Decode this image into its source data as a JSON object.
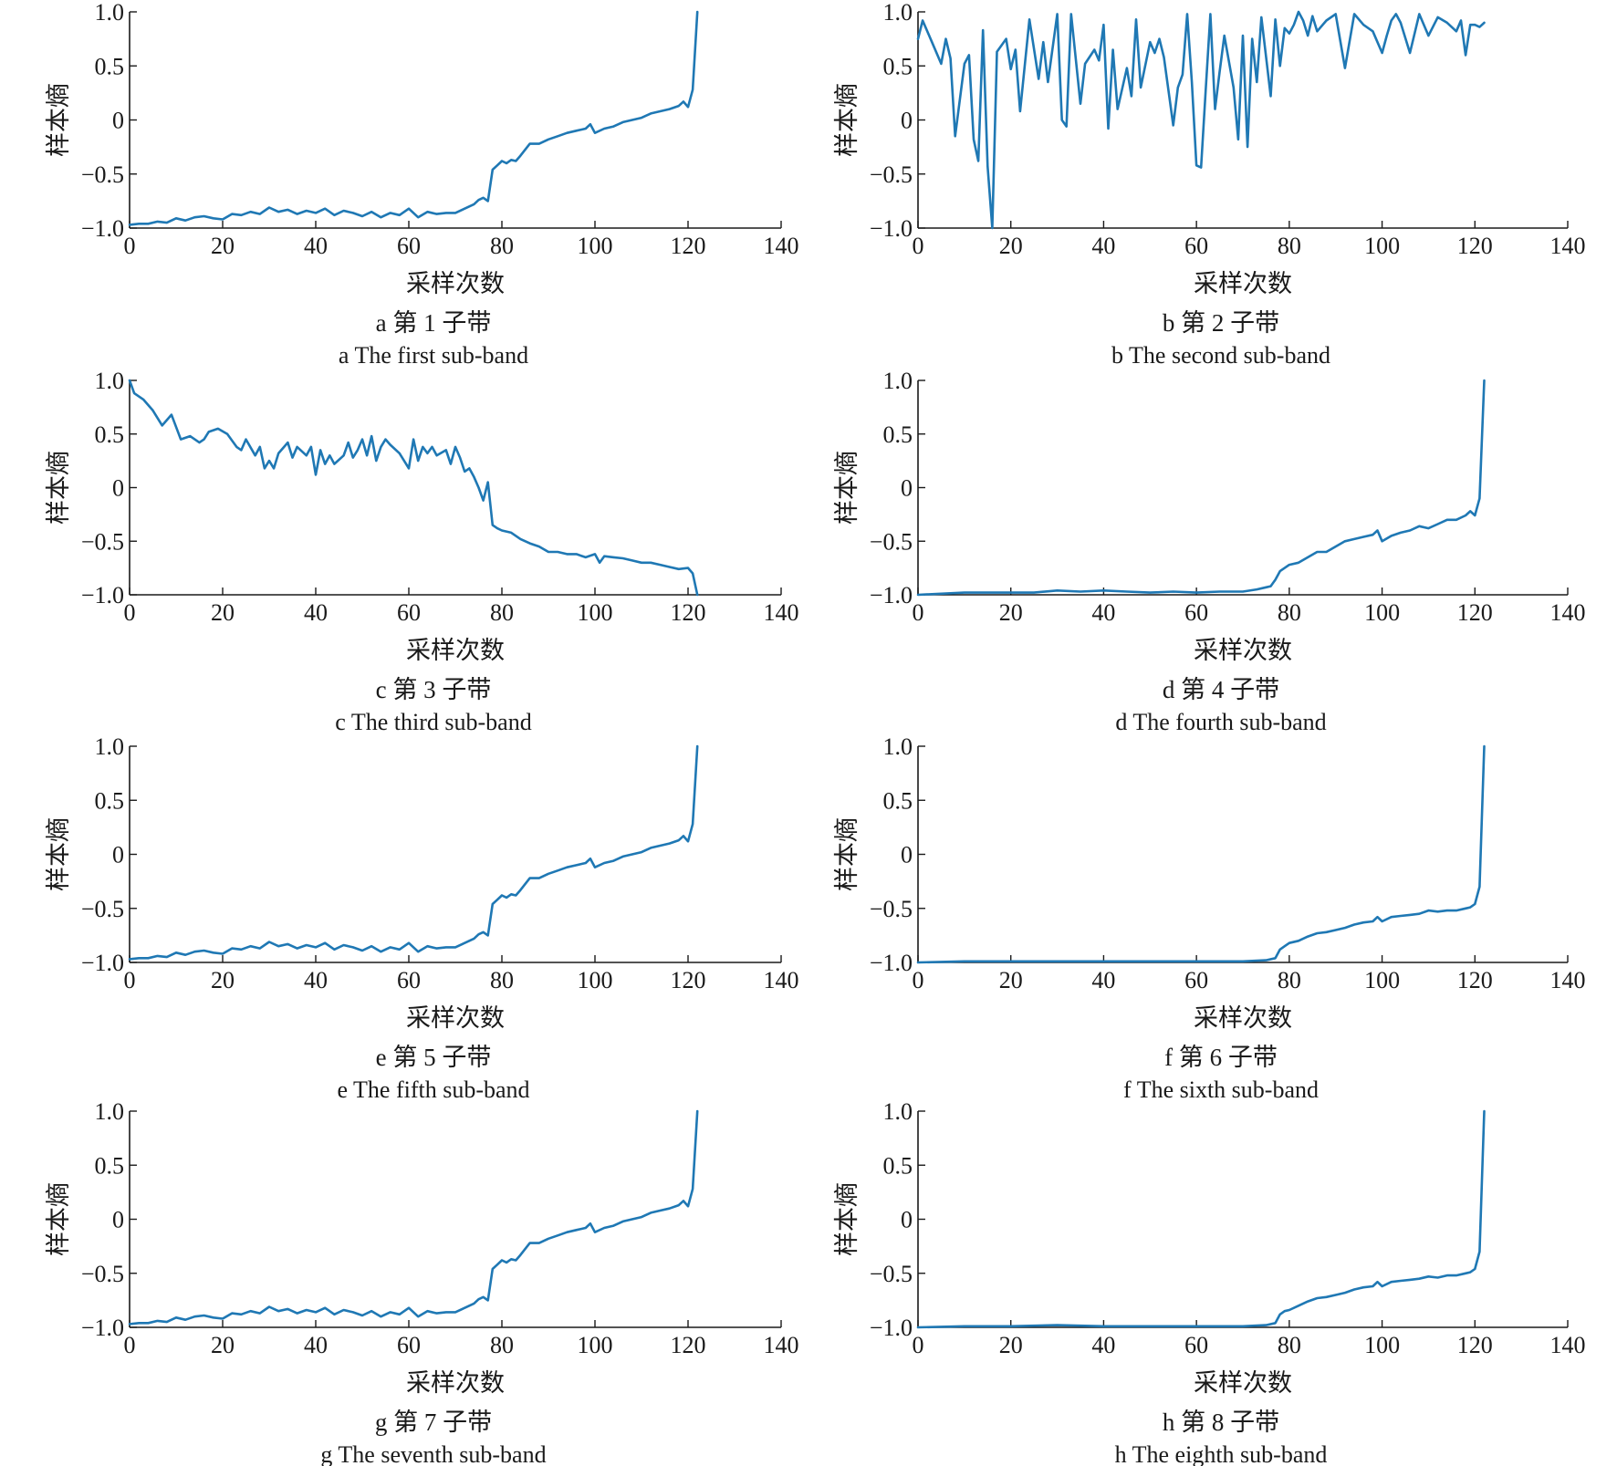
{
  "figure": {
    "line_color": "#1f78b4",
    "xlabel": "采样次数",
    "ylabel": "样本熵",
    "xticks": [
      "0",
      "20",
      "40",
      "60",
      "80",
      "100",
      "120",
      "140"
    ],
    "yticks": [
      "1.0",
      "0.5",
      "0",
      "−0.5",
      "−1.0"
    ]
  },
  "chart_data": [
    {
      "type": "line",
      "panel": "a",
      "caption_cn": "a  第 1 子带",
      "caption_en": "a  The first sub-band",
      "xlabel": "采样次数",
      "ylabel": "样本熵",
      "xlim": [
        0,
        140
      ],
      "ylim": [
        -1.0,
        1.0
      ],
      "x": [
        0,
        2,
        4,
        6,
        8,
        10,
        12,
        14,
        16,
        18,
        20,
        22,
        24,
        26,
        28,
        30,
        32,
        34,
        36,
        38,
        40,
        42,
        44,
        46,
        48,
        50,
        52,
        54,
        56,
        58,
        60,
        62,
        64,
        66,
        68,
        70,
        72,
        74,
        75,
        76,
        77,
        78,
        79,
        80,
        81,
        82,
        83,
        84,
        86,
        88,
        90,
        92,
        94,
        96,
        98,
        99,
        100,
        102,
        104,
        106,
        108,
        110,
        112,
        114,
        116,
        118,
        119,
        120,
        121,
        122
      ],
      "series": [
        {
          "values": [
            -0.97,
            -0.96,
            -0.96,
            -0.94,
            -0.95,
            -0.91,
            -0.93,
            -0.9,
            -0.89,
            -0.91,
            -0.92,
            -0.87,
            -0.88,
            -0.85,
            -0.87,
            -0.81,
            -0.85,
            -0.83,
            -0.87,
            -0.84,
            -0.86,
            -0.82,
            -0.88,
            -0.84,
            -0.86,
            -0.89,
            -0.85,
            -0.9,
            -0.86,
            -0.88,
            -0.82,
            -0.9,
            -0.85,
            -0.87,
            -0.86,
            -0.86,
            -0.82,
            -0.78,
            -0.74,
            -0.72,
            -0.75,
            -0.46,
            -0.42,
            -0.38,
            -0.4,
            -0.37,
            -0.38,
            -0.33,
            -0.22,
            -0.22,
            -0.18,
            -0.15,
            -0.12,
            -0.1,
            -0.08,
            -0.04,
            -0.12,
            -0.08,
            -0.06,
            -0.02,
            0.0,
            0.02,
            0.06,
            0.08,
            0.1,
            0.13,
            0.17,
            0.12,
            0.28,
            1.0
          ]
        }
      ]
    },
    {
      "type": "line",
      "panel": "b",
      "caption_cn": "b  第 2 子带",
      "caption_en": "b  The second sub-band",
      "xlabel": "采样次数",
      "ylabel": "样本熵",
      "xlim": [
        0,
        140
      ],
      "ylim": [
        -1.0,
        1.0
      ],
      "x": [
        0,
        1,
        3,
        5,
        6,
        7,
        8,
        10,
        11,
        12,
        13,
        14,
        15,
        16,
        17,
        19,
        20,
        21,
        22,
        24,
        26,
        27,
        28,
        30,
        31,
        32,
        33,
        35,
        36,
        38,
        39,
        40,
        41,
        42,
        43,
        45,
        46,
        47,
        48,
        50,
        51,
        52,
        53,
        55,
        56,
        57,
        58,
        59,
        60,
        61,
        62,
        63,
        64,
        65,
        66,
        68,
        69,
        70,
        71,
        72,
        73,
        74,
        76,
        77,
        78,
        79,
        80,
        81,
        82,
        83,
        84,
        85,
        86,
        88,
        90,
        92,
        94,
        96,
        98,
        100,
        101,
        102,
        103,
        104,
        106,
        108,
        110,
        112,
        114,
        116,
        117,
        118,
        119,
        120,
        121,
        122
      ],
      "series": [
        {
          "values": [
            0.75,
            0.92,
            0.72,
            0.52,
            0.75,
            0.57,
            -0.15,
            0.52,
            0.6,
            -0.18,
            -0.38,
            0.83,
            -0.43,
            -1.0,
            0.63,
            0.75,
            0.47,
            0.65,
            0.08,
            0.93,
            0.38,
            0.72,
            0.35,
            0.98,
            0.0,
            -0.06,
            0.98,
            0.15,
            0.52,
            0.65,
            0.55,
            0.88,
            -0.08,
            0.65,
            0.1,
            0.48,
            0.22,
            0.93,
            0.3,
            0.72,
            0.62,
            0.75,
            0.58,
            -0.05,
            0.3,
            0.42,
            0.98,
            0.35,
            -0.42,
            -0.44,
            0.28,
            0.98,
            0.1,
            0.45,
            0.78,
            0.3,
            -0.18,
            0.78,
            -0.25,
            0.75,
            0.35,
            0.95,
            0.22,
            0.93,
            0.5,
            0.85,
            0.8,
            0.88,
            1.0,
            0.92,
            0.78,
            0.96,
            0.82,
            0.92,
            0.98,
            0.48,
            0.98,
            0.88,
            0.82,
            0.62,
            0.78,
            0.92,
            0.98,
            0.9,
            0.62,
            0.98,
            0.78,
            0.95,
            0.9,
            0.82,
            0.92,
            0.6,
            0.88,
            0.88,
            0.86,
            0.9
          ]
        }
      ]
    },
    {
      "type": "line",
      "panel": "c",
      "caption_cn": "c  第 3 子带",
      "caption_en": "c  The third sub-band",
      "xlabel": "采样次数",
      "ylabel": "样本熵",
      "xlim": [
        0,
        140
      ],
      "ylim": [
        -1.0,
        1.0
      ],
      "x": [
        0,
        1,
        3,
        5,
        7,
        9,
        11,
        13,
        15,
        16,
        17,
        19,
        21,
        23,
        24,
        25,
        27,
        28,
        29,
        30,
        31,
        32,
        34,
        35,
        36,
        38,
        39,
        40,
        41,
        42,
        43,
        44,
        46,
        47,
        48,
        49,
        50,
        51,
        52,
        53,
        54,
        55,
        56,
        58,
        60,
        61,
        62,
        63,
        64,
        65,
        66,
        68,
        69,
        70,
        71,
        72,
        73,
        74,
        75,
        76,
        77,
        78,
        79,
        80,
        82,
        84,
        86,
        88,
        90,
        92,
        94,
        96,
        98,
        100,
        101,
        102,
        104,
        106,
        108,
        110,
        112,
        114,
        116,
        118,
        120,
        121,
        122
      ],
      "series": [
        {
          "values": [
            1.0,
            0.88,
            0.82,
            0.72,
            0.58,
            0.68,
            0.45,
            0.48,
            0.42,
            0.45,
            0.52,
            0.55,
            0.5,
            0.38,
            0.35,
            0.45,
            0.3,
            0.38,
            0.18,
            0.25,
            0.18,
            0.32,
            0.42,
            0.28,
            0.38,
            0.3,
            0.38,
            0.12,
            0.35,
            0.22,
            0.3,
            0.22,
            0.3,
            0.42,
            0.28,
            0.35,
            0.45,
            0.3,
            0.48,
            0.25,
            0.38,
            0.45,
            0.4,
            0.32,
            0.18,
            0.45,
            0.25,
            0.38,
            0.32,
            0.38,
            0.3,
            0.35,
            0.22,
            0.38,
            0.28,
            0.15,
            0.18,
            0.1,
            0.0,
            -0.12,
            0.05,
            -0.35,
            -0.38,
            -0.4,
            -0.42,
            -0.48,
            -0.52,
            -0.55,
            -0.6,
            -0.6,
            -0.62,
            -0.62,
            -0.65,
            -0.62,
            -0.7,
            -0.64,
            -0.65,
            -0.66,
            -0.68,
            -0.7,
            -0.7,
            -0.72,
            -0.74,
            -0.76,
            -0.75,
            -0.8,
            -1.0
          ]
        }
      ]
    },
    {
      "type": "line",
      "panel": "d",
      "caption_cn": "d  第 4 子带",
      "caption_en": "d  The fourth sub-band",
      "xlabel": "采样次数",
      "ylabel": "样本熵",
      "xlim": [
        0,
        140
      ],
      "ylim": [
        -1.0,
        1.0
      ],
      "x": [
        0,
        5,
        10,
        15,
        20,
        25,
        30,
        35,
        40,
        45,
        50,
        55,
        60,
        65,
        70,
        73,
        75,
        76,
        77,
        78,
        79,
        80,
        82,
        84,
        86,
        88,
        90,
        92,
        94,
        96,
        98,
        99,
        100,
        102,
        104,
        106,
        108,
        110,
        112,
        114,
        116,
        118,
        119,
        120,
        121,
        122
      ],
      "series": [
        {
          "values": [
            -1.0,
            -0.99,
            -0.98,
            -0.98,
            -0.98,
            -0.98,
            -0.96,
            -0.97,
            -0.96,
            -0.97,
            -0.98,
            -0.97,
            -0.98,
            -0.97,
            -0.97,
            -0.95,
            -0.93,
            -0.92,
            -0.86,
            -0.78,
            -0.75,
            -0.72,
            -0.7,
            -0.65,
            -0.6,
            -0.6,
            -0.55,
            -0.5,
            -0.48,
            -0.46,
            -0.44,
            -0.4,
            -0.5,
            -0.45,
            -0.42,
            -0.4,
            -0.36,
            -0.38,
            -0.34,
            -0.3,
            -0.3,
            -0.26,
            -0.22,
            -0.26,
            -0.1,
            1.0
          ]
        }
      ]
    },
    {
      "type": "line",
      "panel": "e",
      "caption_cn": "e  第 5 子带",
      "caption_en": "e  The fifth sub-band",
      "xlabel": "采样次数",
      "ylabel": "样本熵",
      "xlim": [
        0,
        140
      ],
      "ylim": [
        -1.0,
        1.0
      ],
      "x": [
        0,
        2,
        4,
        6,
        8,
        10,
        12,
        14,
        16,
        18,
        20,
        22,
        24,
        26,
        28,
        30,
        32,
        34,
        36,
        38,
        40,
        42,
        44,
        46,
        48,
        50,
        52,
        54,
        56,
        58,
        60,
        62,
        64,
        66,
        68,
        70,
        72,
        74,
        75,
        76,
        77,
        78,
        79,
        80,
        81,
        82,
        83,
        84,
        86,
        88,
        90,
        92,
        94,
        96,
        98,
        99,
        100,
        102,
        104,
        106,
        108,
        110,
        112,
        114,
        116,
        118,
        119,
        120,
        121,
        122
      ],
      "series": [
        {
          "values": [
            -0.97,
            -0.96,
            -0.96,
            -0.94,
            -0.95,
            -0.91,
            -0.93,
            -0.9,
            -0.89,
            -0.91,
            -0.92,
            -0.87,
            -0.88,
            -0.85,
            -0.87,
            -0.81,
            -0.85,
            -0.83,
            -0.87,
            -0.84,
            -0.86,
            -0.82,
            -0.88,
            -0.84,
            -0.86,
            -0.89,
            -0.85,
            -0.9,
            -0.86,
            -0.88,
            -0.82,
            -0.9,
            -0.85,
            -0.87,
            -0.86,
            -0.86,
            -0.82,
            -0.78,
            -0.74,
            -0.72,
            -0.75,
            -0.46,
            -0.42,
            -0.38,
            -0.4,
            -0.37,
            -0.38,
            -0.33,
            -0.22,
            -0.22,
            -0.18,
            -0.15,
            -0.12,
            -0.1,
            -0.08,
            -0.04,
            -0.12,
            -0.08,
            -0.06,
            -0.02,
            0.0,
            0.02,
            0.06,
            0.08,
            0.1,
            0.13,
            0.17,
            0.12,
            0.28,
            1.0
          ]
        }
      ]
    },
    {
      "type": "line",
      "panel": "f",
      "caption_cn": "f  第 6 子带",
      "caption_en": "f  The sixth sub-band",
      "xlabel": "采样次数",
      "ylabel": "样本熵",
      "xlim": [
        0,
        140
      ],
      "ylim": [
        -1.0,
        1.0
      ],
      "x": [
        0,
        10,
        20,
        30,
        40,
        50,
        60,
        70,
        75,
        77,
        78,
        79,
        80,
        82,
        84,
        86,
        88,
        90,
        92,
        94,
        96,
        98,
        99,
        100,
        102,
        104,
        106,
        108,
        110,
        112,
        114,
        116,
        118,
        119,
        120,
        121,
        122
      ],
      "series": [
        {
          "values": [
            -1.0,
            -0.99,
            -0.99,
            -0.99,
            -0.99,
            -0.99,
            -0.99,
            -0.99,
            -0.98,
            -0.96,
            -0.88,
            -0.85,
            -0.82,
            -0.8,
            -0.76,
            -0.73,
            -0.72,
            -0.7,
            -0.68,
            -0.65,
            -0.63,
            -0.62,
            -0.58,
            -0.62,
            -0.58,
            -0.57,
            -0.56,
            -0.55,
            -0.52,
            -0.53,
            -0.52,
            -0.52,
            -0.5,
            -0.49,
            -0.46,
            -0.3,
            1.0
          ]
        }
      ]
    },
    {
      "type": "line",
      "panel": "g",
      "caption_cn": "g  第 7 子带",
      "caption_en": "g  The seventh sub-band",
      "xlabel": "采样次数",
      "ylabel": "样本熵",
      "xlim": [
        0,
        140
      ],
      "ylim": [
        -1.0,
        1.0
      ],
      "x": [
        0,
        2,
        4,
        6,
        8,
        10,
        12,
        14,
        16,
        18,
        20,
        22,
        24,
        26,
        28,
        30,
        32,
        34,
        36,
        38,
        40,
        42,
        44,
        46,
        48,
        50,
        52,
        54,
        56,
        58,
        60,
        62,
        64,
        66,
        68,
        70,
        72,
        74,
        75,
        76,
        77,
        78,
        79,
        80,
        81,
        82,
        83,
        84,
        86,
        88,
        90,
        92,
        94,
        96,
        98,
        99,
        100,
        102,
        104,
        106,
        108,
        110,
        112,
        114,
        116,
        118,
        119,
        120,
        121,
        122
      ],
      "series": [
        {
          "values": [
            -0.97,
            -0.96,
            -0.96,
            -0.94,
            -0.95,
            -0.91,
            -0.93,
            -0.9,
            -0.89,
            -0.91,
            -0.92,
            -0.87,
            -0.88,
            -0.85,
            -0.87,
            -0.81,
            -0.85,
            -0.83,
            -0.87,
            -0.84,
            -0.86,
            -0.82,
            -0.88,
            -0.84,
            -0.86,
            -0.89,
            -0.85,
            -0.9,
            -0.86,
            -0.88,
            -0.82,
            -0.9,
            -0.85,
            -0.87,
            -0.86,
            -0.86,
            -0.82,
            -0.78,
            -0.74,
            -0.72,
            -0.75,
            -0.46,
            -0.42,
            -0.38,
            -0.4,
            -0.37,
            -0.38,
            -0.33,
            -0.22,
            -0.22,
            -0.18,
            -0.15,
            -0.12,
            -0.1,
            -0.08,
            -0.04,
            -0.12,
            -0.08,
            -0.06,
            -0.02,
            0.0,
            0.02,
            0.06,
            0.08,
            0.1,
            0.13,
            0.17,
            0.12,
            0.28,
            1.0
          ]
        }
      ]
    },
    {
      "type": "line",
      "panel": "h",
      "caption_cn": "h  第 8 子带",
      "caption_en": "h  The eighth sub-band",
      "xlabel": "采样次数",
      "ylabel": "样本熵",
      "xlim": [
        0,
        140
      ],
      "ylim": [
        -1.0,
        1.0
      ],
      "x": [
        0,
        10,
        20,
        30,
        40,
        50,
        60,
        70,
        75,
        77,
        78,
        79,
        80,
        82,
        84,
        86,
        88,
        90,
        92,
        94,
        96,
        98,
        99,
        100,
        102,
        104,
        106,
        108,
        110,
        112,
        114,
        116,
        118,
        119,
        120,
        121,
        122
      ],
      "series": [
        {
          "values": [
            -1.0,
            -0.99,
            -0.99,
            -0.98,
            -0.99,
            -0.99,
            -0.99,
            -0.99,
            -0.98,
            -0.96,
            -0.88,
            -0.85,
            -0.84,
            -0.8,
            -0.76,
            -0.73,
            -0.72,
            -0.7,
            -0.68,
            -0.65,
            -0.63,
            -0.62,
            -0.58,
            -0.62,
            -0.58,
            -0.57,
            -0.56,
            -0.55,
            -0.53,
            -0.54,
            -0.52,
            -0.52,
            -0.5,
            -0.49,
            -0.46,
            -0.3,
            1.0
          ]
        }
      ]
    }
  ]
}
